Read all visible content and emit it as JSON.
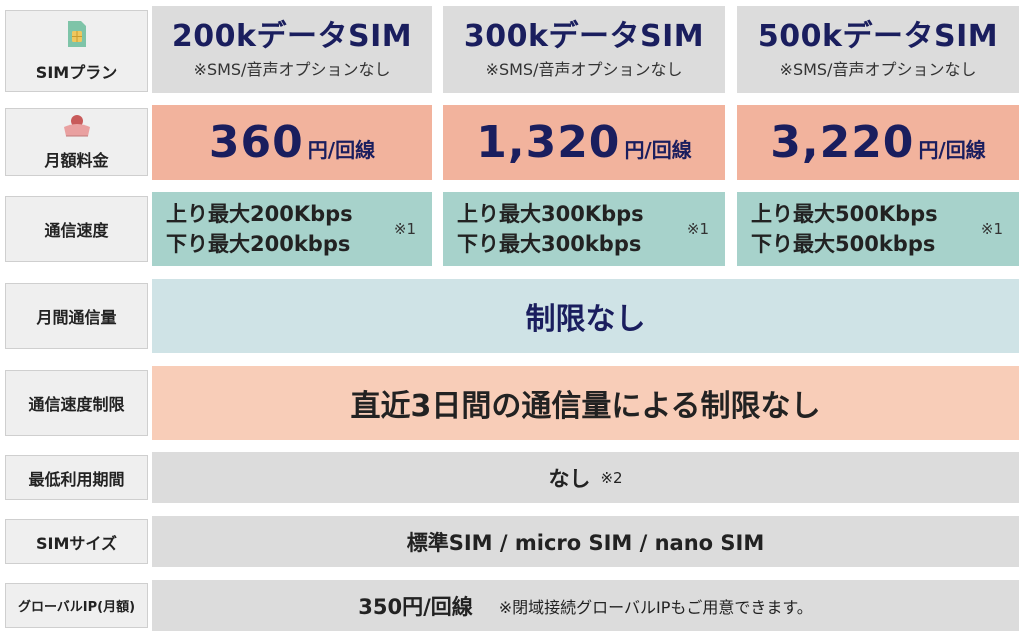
{
  "labels": {
    "sim_plan": "SIMプラン",
    "monthly_fee": "月額料金",
    "speed": "通信速度",
    "monthly_volume": "月間通信量",
    "speed_limit": "通信速度制限",
    "min_period": "最低利用期間",
    "sim_size": "SIMサイズ",
    "global_ip": "グローバルIP(月額)"
  },
  "plans": [
    {
      "name": "200kデータSIM",
      "note": "※SMS/音声オプションなし",
      "price": "360",
      "price_unit": "円/回線",
      "up": "上り最大200Kbps",
      "down": "下り最大200kbps",
      "speed_note": "※1"
    },
    {
      "name": "300kデータSIM",
      "note": "※SMS/音声オプションなし",
      "price": "1,320",
      "price_unit": "円/回線",
      "up": "上り最大300Kbps",
      "down": "下り最大300kbps",
      "speed_note": "※1"
    },
    {
      "name": "500kデータSIM",
      "note": "※SMS/音声オプションなし",
      "price": "3,220",
      "price_unit": "円/回線",
      "up": "上り最大500Kbps",
      "down": "下り最大500kbps",
      "speed_note": "※1"
    }
  ],
  "monthly_volume": "制限なし",
  "speed_limit": "直近3日間の通信量による制限なし",
  "min_period": "なし",
  "min_period_note": "※2",
  "sim_size": "標準SIM / micro SIM / nano SIM",
  "global_ip": "350円/回線",
  "global_ip_note": "※閉域接続グローバルIPもご用意できます。",
  "icons": {
    "sim": "sim-card-icon",
    "fee": "wallet-icon"
  },
  "colors": {
    "navy": "#1a1e5e",
    "price_bg": "#f2b39d",
    "speed_bg": "#a7d2cb",
    "volume_bg": "#cfe3e6",
    "limit_bg": "#f8cdb8",
    "gray_bg": "#dcdcdc"
  }
}
